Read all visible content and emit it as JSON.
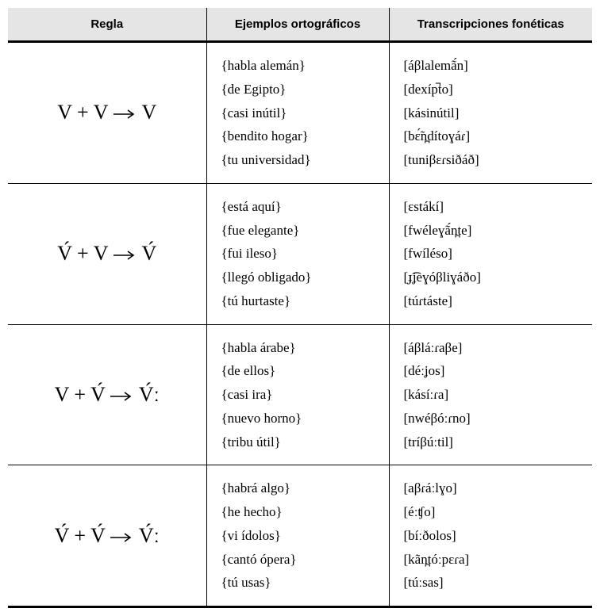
{
  "headers": {
    "rule": "Regla",
    "examples": "Ejemplos ortográficos",
    "phonetic": "Transcripciones fonéticas"
  },
  "rows": [
    {
      "rule": "V + V → V",
      "examples": [
        "{habla alemán}",
        "{de Egipto}",
        "{casi inútil}",
        "{bendito hogar}",
        "{tu universidad}"
      ],
      "phonetic": [
        "[áβlalemã́n]",
        "[dexíp̚to]",
        "[kásinútil]",
        "[bɛ̃́n̪dítoɣáɾ]",
        "[tuniβɛɾsiðáð]"
      ]
    },
    {
      "rule": "V́ + V → V́",
      "examples": [
        "{está aquí}",
        "{fue elegante}",
        "{fui ileso}",
        "{llegó obligado}",
        "{tú hurtaste}"
      ],
      "phonetic": [
        "[ɛstákí]",
        "[fwéleɣã́n̪te]",
        "[fwíléso]",
        "[ɟ͡ʝeɣóβliɣáðo]",
        "[túɾtáste]"
      ]
    },
    {
      "rule": "V + V́ → V́ː",
      "examples": [
        "{habla árabe}",
        "{de ellos}",
        "{casi ira}",
        "{nuevo horno}",
        "{tribu útil}"
      ],
      "phonetic": [
        "[áβláːɾaβe]",
        "[déːʝos]",
        "[kásíːɾa]",
        "[nwéβóːɾno]",
        "[tríβúːtil]"
      ]
    },
    {
      "rule": "V́ + V́ → V́ː",
      "examples": [
        "{habrá algo}",
        "{he hecho}",
        "{vi ídolos}",
        "{cantó ópera}",
        "{tú usas}"
      ],
      "phonetic": [
        "[aβɾáːlɣo]",
        "[éːʧo]",
        "[bíːðolos]",
        "[kãn̪tóːpɛɾa]",
        "[túːsas]"
      ]
    }
  ]
}
